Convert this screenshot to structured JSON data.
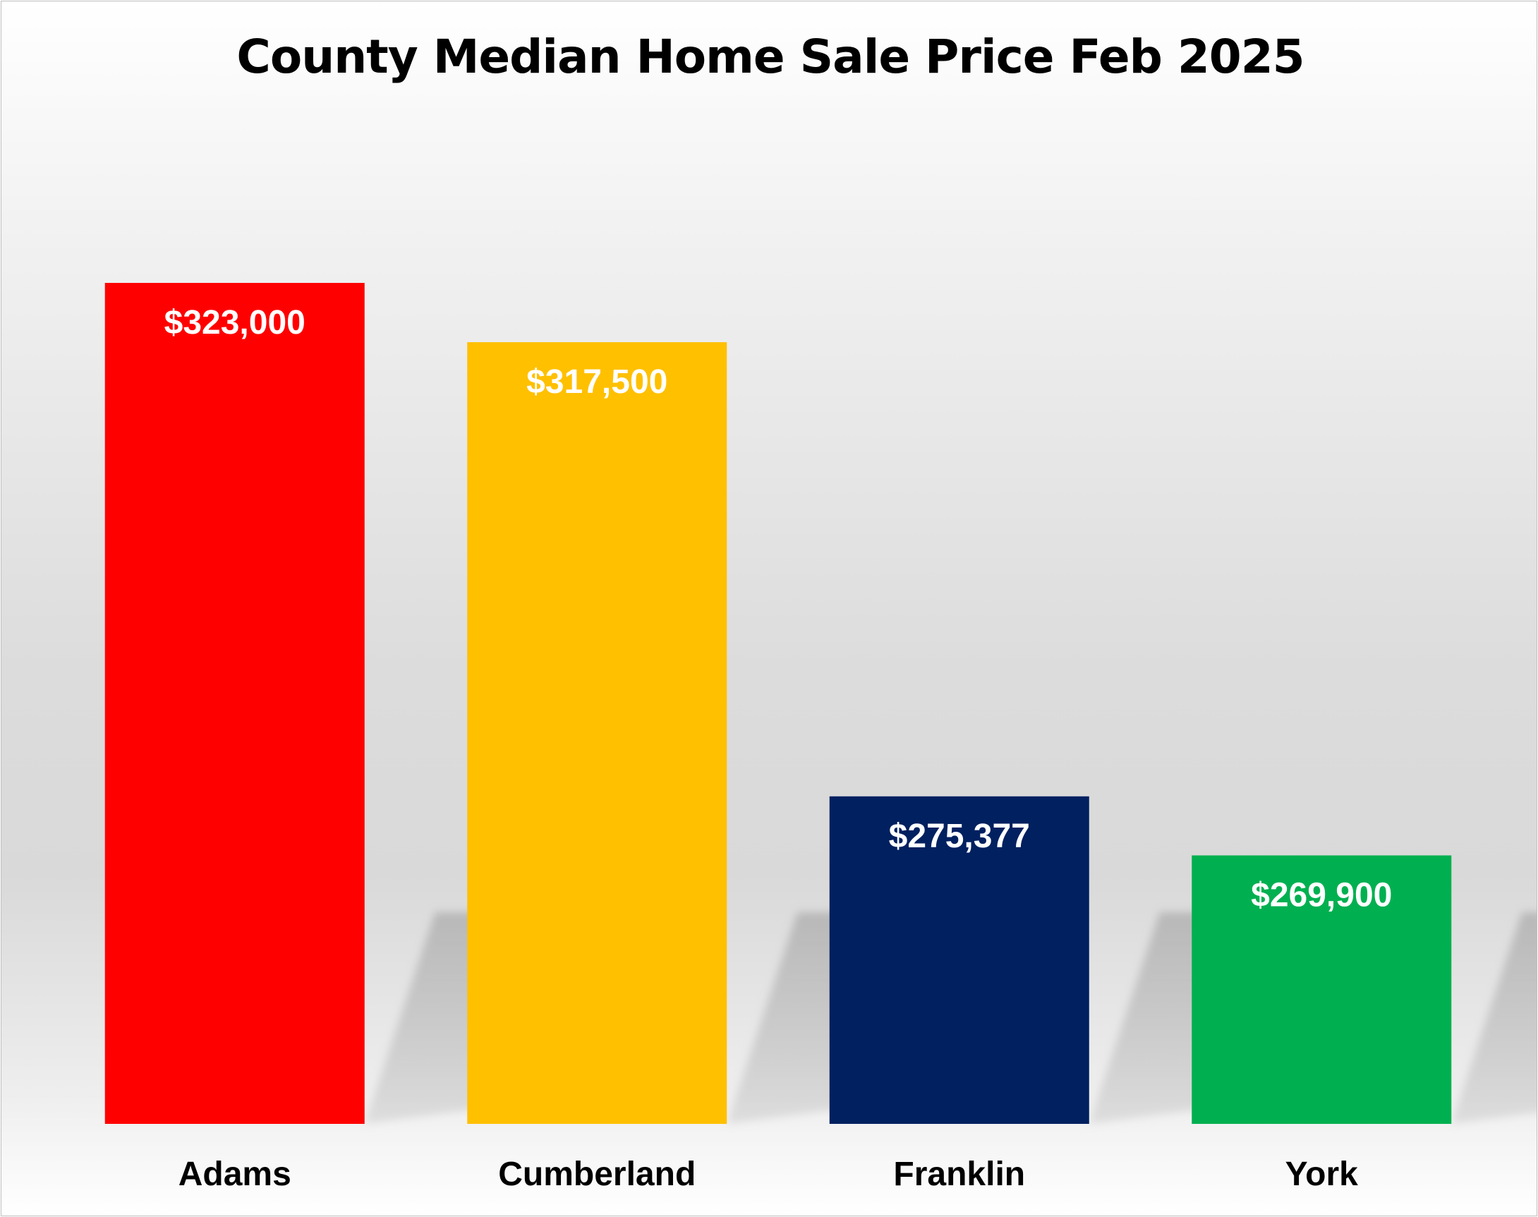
{
  "chart_data": {
    "type": "bar",
    "title": "County Median Home Sale Price Feb 2025",
    "xlabel": "",
    "ylabel": "",
    "categories": [
      "Adams",
      "Cumberland",
      "Franklin",
      "York"
    ],
    "values": [
      323000,
      317500,
      275377,
      269900
    ],
    "data_labels": [
      "$323,000",
      "$317,500",
      "$275,377",
      "$269,900"
    ],
    "colors": [
      "#ff0000",
      "#ffc000",
      "#002060",
      "#00b050"
    ],
    "ylim": [
      245000,
      330000
    ],
    "grid": false,
    "legend": "none"
  }
}
